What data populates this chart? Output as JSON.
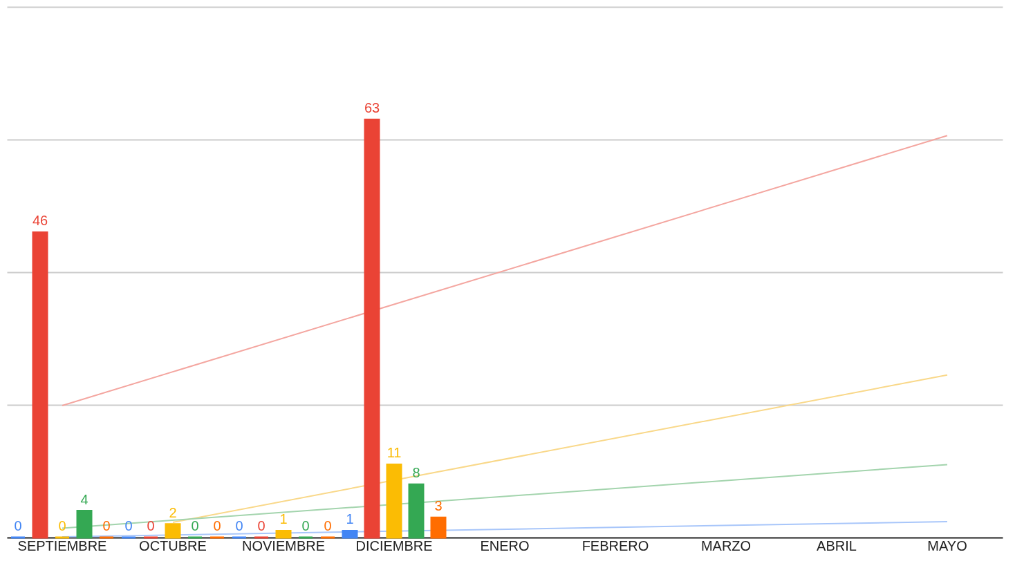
{
  "chart_data": {
    "type": "bar",
    "categories": [
      "SEPTIEMBRE",
      "OCTUBRE",
      "NOVIEMBRE",
      "DICIEMBRE",
      "ENERO",
      "FEBRERO",
      "MARZO",
      "ABRIL",
      "MAYO"
    ],
    "series": [
      {
        "color": "#4285f4",
        "values": [
          0,
          0,
          0,
          1,
          null,
          null,
          null,
          null,
          null
        ],
        "value_labels": [
          "0",
          "0",
          "0",
          "1",
          null,
          null,
          null,
          null,
          null
        ]
      },
      {
        "color": "#ea4335",
        "values": [
          46,
          0,
          0,
          63,
          null,
          null,
          null,
          null,
          null
        ],
        "value_labels": [
          "46",
          "0",
          "0",
          "63",
          null,
          null,
          null,
          null,
          null
        ]
      },
      {
        "color": "#fbbc04",
        "values": [
          0,
          2,
          1,
          11,
          null,
          null,
          null,
          null,
          null
        ],
        "value_labels": [
          "0",
          "2",
          "1",
          "11",
          null,
          null,
          null,
          null,
          null
        ]
      },
      {
        "color": "#34a853",
        "values": [
          4,
          0,
          0,
          8,
          null,
          null,
          null,
          null,
          null
        ],
        "value_labels": [
          "4",
          "0",
          "0",
          "8",
          null,
          null,
          null,
          null,
          null
        ]
      },
      {
        "color": "#ff6d01",
        "values": [
          0,
          0,
          0,
          3,
          null,
          null,
          null,
          null,
          null
        ],
        "value_labels": [
          "0",
          "0",
          "0",
          "3",
          null,
          null,
          null,
          null,
          null
        ]
      },
      {
        "type": "line",
        "color": "#f4a6a0",
        "x": [
          "SEPTIEMBRE",
          "MAYO"
        ],
        "values": [
          19.9,
          60.6
        ]
      },
      {
        "type": "line",
        "color": "#f9d889",
        "x": [
          "OCTUBRE",
          "MAYO"
        ],
        "values": [
          2.3,
          24.5
        ]
      },
      {
        "type": "line",
        "color": "#a3d4ad",
        "x": [
          "SEPTIEMBRE",
          "MAYO"
        ],
        "values": [
          1.4,
          11.0
        ]
      },
      {
        "type": "line",
        "color": "#a8c6fa",
        "x": [
          "SEPTIEMBRE",
          "MAYO"
        ],
        "values": [
          0.1,
          2.4
        ]
      }
    ],
    "ylim": [
      0,
      80
    ],
    "yticks": [
      0,
      20,
      40,
      60,
      80
    ],
    "grid": "y",
    "tick_labels": "x",
    "legend": false
  }
}
